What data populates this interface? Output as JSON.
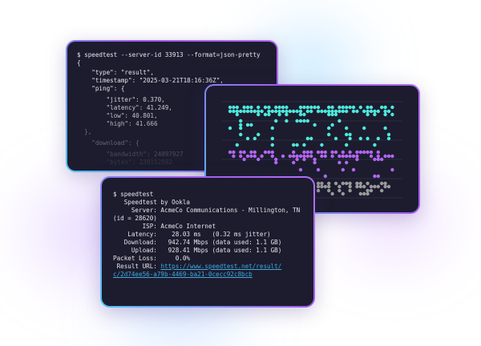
{
  "json_terminal": {
    "lines": [
      "$ speedtest --server-id 33913 --format=json-pretty",
      "{",
      "    \"type\": \"result\",",
      "    \"timestamp\": \"2025-03-21T18:16:36Z\",",
      "    \"ping\": {",
      "        \"jitter\": 0.370,",
      "        \"latency\": 41.249,",
      "        \"low\": 40.801,",
      "        \"high\": 41.666",
      "  },",
      "    \"download\": {",
      "        \"bandwidth\": 24097927",
      "        \"bytes\": 239152592"
    ]
  },
  "dot_chart": {
    "colors": {
      "top": "#4de8dc",
      "middle": "#b266f0",
      "bottom": "#9a9a9a",
      "grid": "#2c2c44"
    }
  },
  "cli_terminal": {
    "lines": [
      "$ speedtest",
      "",
      "   Speedtest by Ookla",
      "",
      "     Server: AcmeCo Communications - Millington, TN",
      "(id = 28620)",
      "        ISP: AcmeCo Internet",
      "    Latency:    28.03 ms   (0.32 ms jitter)",
      "   Download:   942.74 Mbps (data used: 1.1 GB)",
      "     Upload:   928.41 Mbps (data used: 1.1 GB)",
      "Packet Loss:     0.0%"
    ],
    "result_label": " Result URL: ",
    "result_url_1": "https://www.speedtest.net/result/",
    "result_url_2": "c/2d74ee56-a79b-4469-ba21-0cecc92c8bcb"
  }
}
